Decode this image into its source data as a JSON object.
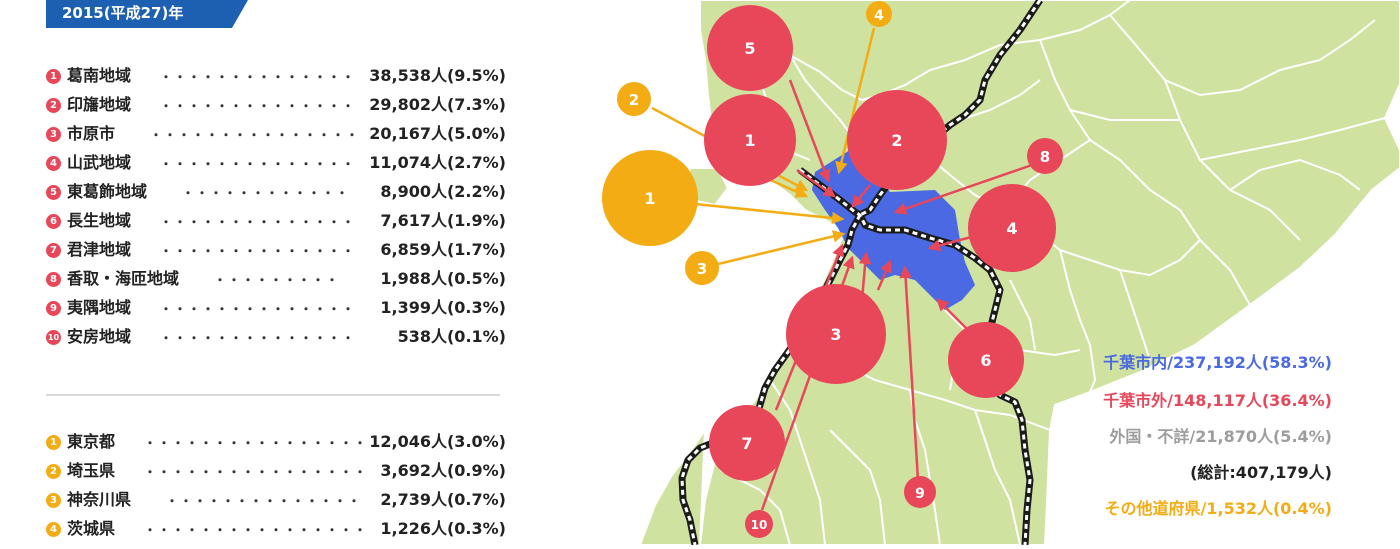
{
  "header": {
    "year_label": "2015(平成27)年"
  },
  "colors": {
    "chiba_inside": "#4a69e2",
    "chiba_outside": "#e8475a",
    "other_prefectures": "#f3ac14",
    "foreign_unknown": "#9d9d9d",
    "map_land": "#cfe2a0",
    "map_border": "#ffffff"
  },
  "inside_list": [
    {
      "num": "1",
      "name": "葛南地域",
      "value": "38,538人(9.5%)"
    },
    {
      "num": "2",
      "name": "印旛地域",
      "value": "29,802人(7.3%)"
    },
    {
      "num": "3",
      "name": "市原市",
      "value": "20,167人(5.0%)"
    },
    {
      "num": "4",
      "name": "山武地域",
      "value": "11,074人(2.7%)"
    },
    {
      "num": "5",
      "name": "東葛飾地域",
      "value": "8,900人(2.2%)"
    },
    {
      "num": "6",
      "name": "長生地域",
      "value": "7,617人(1.9%)"
    },
    {
      "num": "7",
      "name": "君津地域",
      "value": "6,859人(1.7%)"
    },
    {
      "num": "8",
      "name": "香取・海匝地域",
      "value": "1,988人(0.5%)"
    },
    {
      "num": "9",
      "name": "夷隅地域",
      "value": "1,399人(0.3%)"
    },
    {
      "num": "10",
      "name": "安房地域",
      "value": "538人(0.1%)"
    }
  ],
  "outside_list": [
    {
      "num": "1",
      "name": "東京都",
      "value": "12,046人(3.0%)"
    },
    {
      "num": "2",
      "name": "埼玉県",
      "value": "3,692人(0.9%)"
    },
    {
      "num": "3",
      "name": "神奈川県",
      "value": "2,739人(0.7%)"
    },
    {
      "num": "4",
      "name": "茨城県",
      "value": "1,226人(0.3%)"
    }
  ],
  "legend": {
    "chiba_inside": "千葉市内/237,192人(58.3%)",
    "chiba_outside": "千葉市外/148,117人(36.4%)",
    "foreign_unknown": "外国・不詳/21,870人(5.4%)",
    "total": "(総計:407,179人)",
    "other_prefectures": "その他道府県/1,532人(0.4%)"
  },
  "map": {
    "red_circles": [
      {
        "label": "1",
        "value": "38,538"
      },
      {
        "label": "2",
        "value": "29,802"
      },
      {
        "label": "3",
        "value": "20,167"
      },
      {
        "label": "4",
        "value": "11,074"
      },
      {
        "label": "5",
        "value": "8,900"
      },
      {
        "label": "6",
        "value": "7,617"
      },
      {
        "label": "7",
        "value": "6,859"
      },
      {
        "label": "8",
        "value": "1,988"
      },
      {
        "label": "9",
        "value": "1,399"
      },
      {
        "label": "10",
        "value": "538"
      }
    ],
    "orange_circles": [
      {
        "label": "1",
        "value": "12,046"
      },
      {
        "label": "2",
        "value": "3,692"
      },
      {
        "label": "3",
        "value": "2,739"
      },
      {
        "label": "4",
        "value": "1,226"
      }
    ]
  }
}
